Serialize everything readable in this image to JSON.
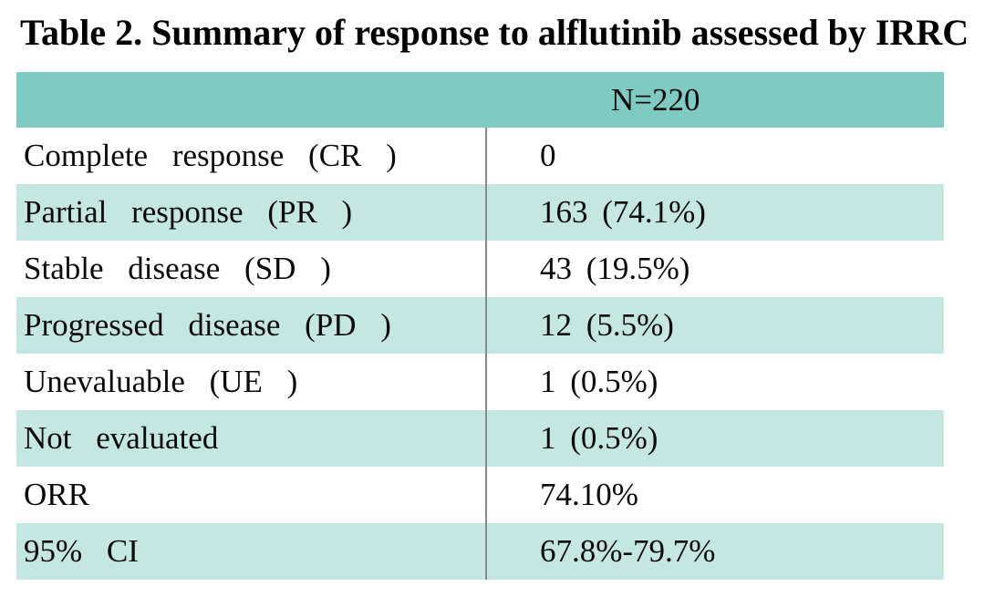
{
  "title": "Table 2. Summary of response to alflutinib assessed by IRRC",
  "table": {
    "header": {
      "value": "N=220"
    },
    "rows": [
      {
        "label": "Complete response (CR )",
        "value": "0"
      },
      {
        "label": "Partial response (PR )",
        "value": "163 (74.1%)"
      },
      {
        "label": "Stable disease (SD )",
        "value": "43 (19.5%)"
      },
      {
        "label": "Progressed disease (PD )",
        "value": "12 (5.5%)"
      },
      {
        "label": "Unevaluable (UE )",
        "value": "1 (0.5%)"
      },
      {
        "label": "Not evaluated",
        "value": "1 (0.5%)"
      },
      {
        "label": "ORR",
        "value": "74.10%"
      },
      {
        "label": "95% CI",
        "value": "67.8%-79.7%"
      }
    ],
    "colors": {
      "header_bg": "#7FCBC1",
      "band_bg": "#C5E7E2",
      "row_bg": "#FFFFFF",
      "divider": "#8A8A8A",
      "text": "#0A0A0A"
    }
  }
}
